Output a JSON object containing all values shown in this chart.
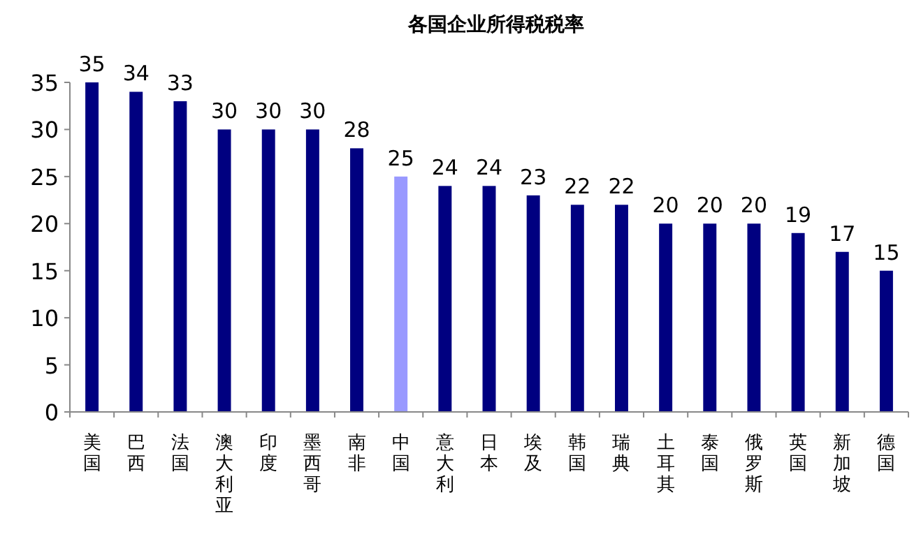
{
  "chart_data": {
    "type": "bar",
    "title": "各国企业所得税税率",
    "categories": [
      "美国",
      "巴西",
      "法国",
      "澳大利亚",
      "印度",
      "墨西哥",
      "南非",
      "中国",
      "意大利",
      "日本",
      "埃及",
      "韩国",
      "瑞典",
      "土耳其",
      "泰国",
      "俄罗斯",
      "英国",
      "新加坡",
      "德国"
    ],
    "values": [
      35,
      34,
      33,
      30,
      30,
      30,
      28,
      25,
      24,
      24,
      23,
      22,
      22,
      20,
      20,
      20,
      19,
      17,
      15
    ],
    "colors": [
      "#000080",
      "#000080",
      "#000080",
      "#000080",
      "#000080",
      "#000080",
      "#000080",
      "#9999ff",
      "#000080",
      "#000080",
      "#000080",
      "#000080",
      "#000080",
      "#000080",
      "#000080",
      "#000080",
      "#000080",
      "#000080",
      "#000080"
    ],
    "ylim": [
      0,
      35
    ],
    "yticks": [
      0,
      5,
      10,
      15,
      20,
      25,
      30,
      35
    ],
    "data_labels": true
  }
}
